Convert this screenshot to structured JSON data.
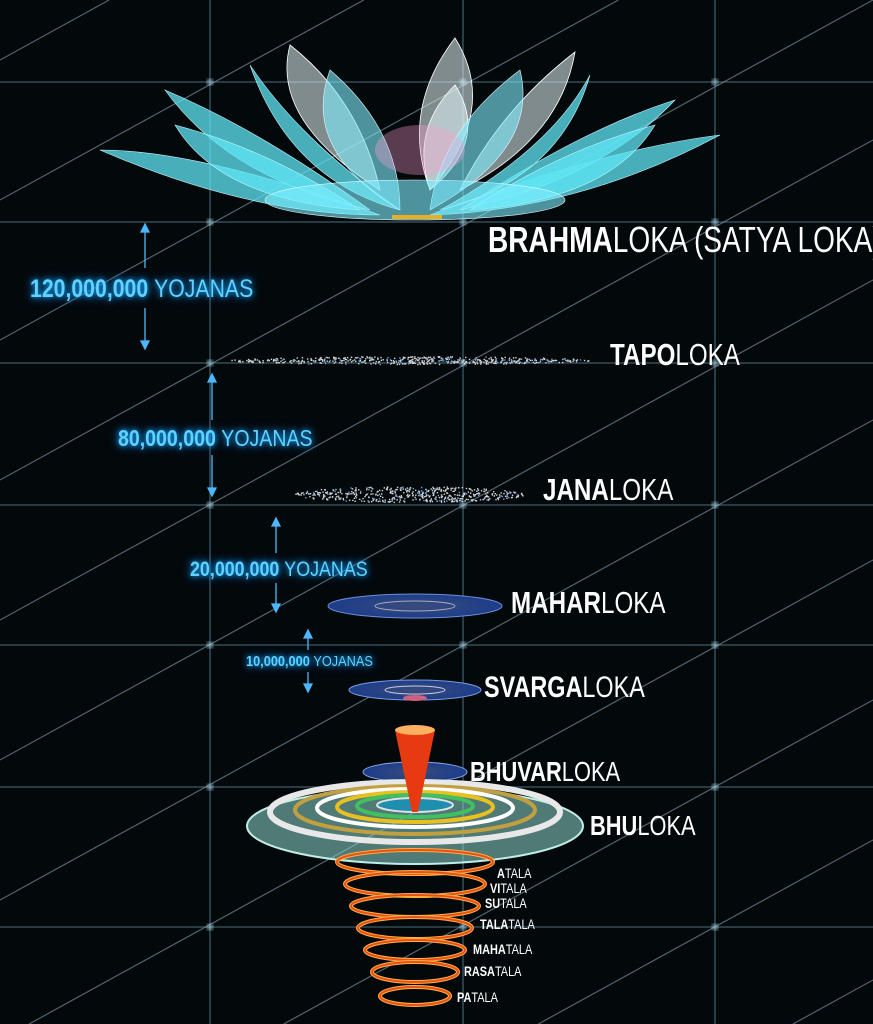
{
  "lokas": [
    {
      "bold": "BRAHMA",
      "light": "LOKA (SATYA LOKA)"
    },
    {
      "bold": "TAPO",
      "light": "LOKA"
    },
    {
      "bold": "JANA",
      "light": "LOKA"
    },
    {
      "bold": "MAHAR",
      "light": "LOKA"
    },
    {
      "bold": "SVARGA",
      "light": "LOKA"
    },
    {
      "bold": "BHUVAR",
      "light": "LOKA"
    },
    {
      "bold": "BHU",
      "light": "LOKA"
    }
  ],
  "distances": [
    {
      "number": "120,000,000",
      "unit": "YOJANAS"
    },
    {
      "number": "80,000,000",
      "unit": "YOJANAS"
    },
    {
      "number": "20,000,000",
      "unit": "YOJANAS"
    },
    {
      "number": "10,000,000",
      "unit": "YOJANAS"
    }
  ],
  "talas": [
    {
      "bold": "A",
      "light": "TALA"
    },
    {
      "bold": "VI",
      "light": "TALA"
    },
    {
      "bold": "SU",
      "light": "TALA"
    },
    {
      "bold": "TALA",
      "light": "TALA"
    },
    {
      "bold": "MAHA",
      "light": "TALA"
    },
    {
      "bold": "RASA",
      "light": "TALA"
    },
    {
      "bold": "PA",
      "light": "TALA"
    }
  ],
  "colors": {
    "background": "#03080b",
    "grid": "#4a6f80",
    "lotus": "#5fe6f5",
    "distance_text": "#5fd2ff",
    "tala_rings": "#e8501a"
  }
}
